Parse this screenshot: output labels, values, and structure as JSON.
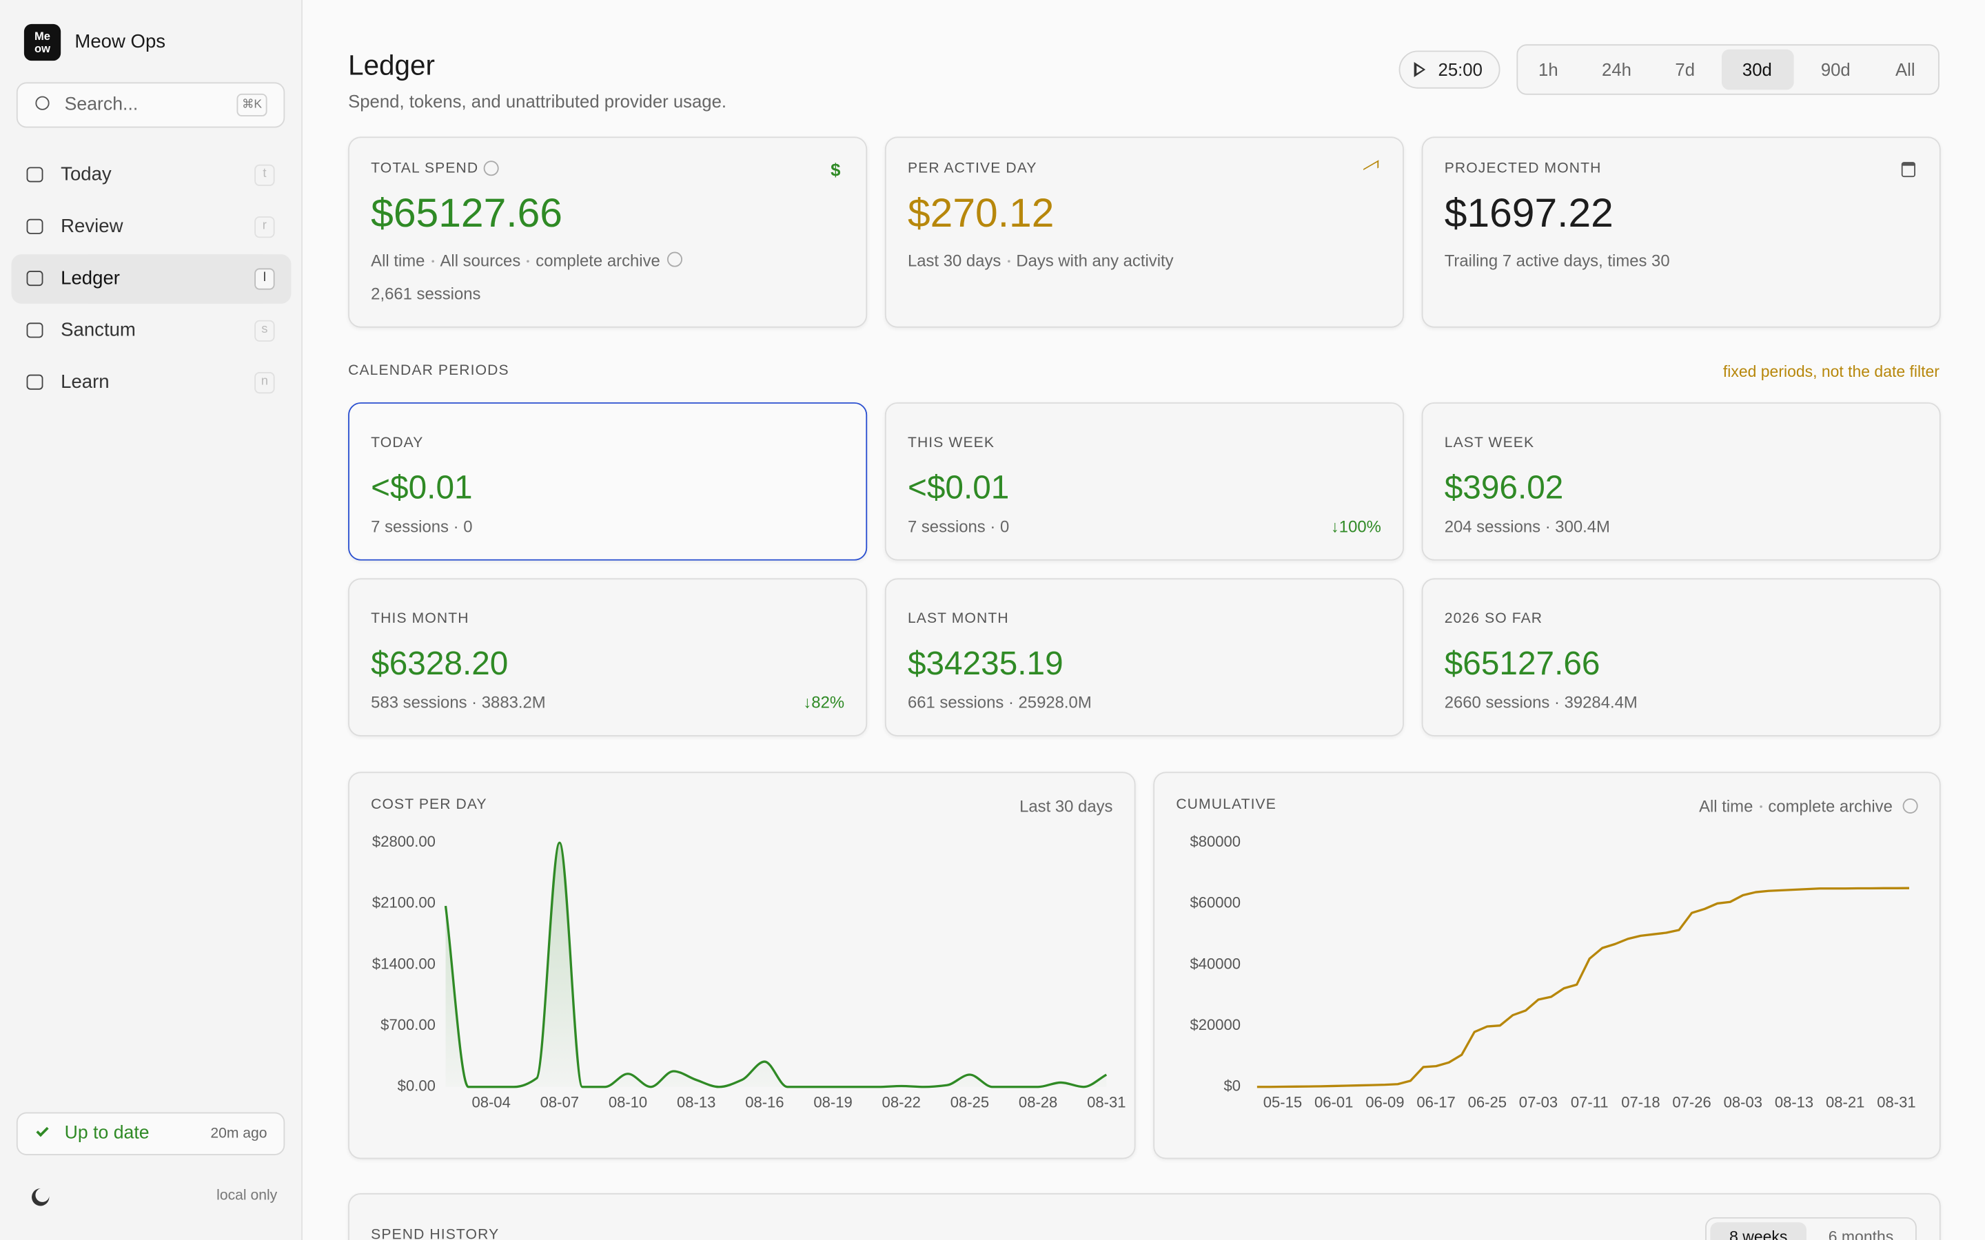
{
  "sidebar": {
    "logo": [
      "Me",
      "ow"
    ],
    "brand": "Meow Ops",
    "search": {
      "placeholder": "Search...",
      "shortcut": "⌘K"
    },
    "nav": [
      {
        "label": "Today",
        "key": "t"
      },
      {
        "label": "Review",
        "key": "r"
      },
      {
        "label": "Ledger",
        "key": "l"
      },
      {
        "label": "Sanctum",
        "key": "s"
      },
      {
        "label": "Learn",
        "key": "n"
      }
    ],
    "active_nav": 2,
    "status": {
      "label": "Up to date",
      "time": "20m ago"
    },
    "footer": "local only"
  },
  "header": {
    "title": "Ledger",
    "subtitle": "Spend, tokens, and unattributed provider usage.",
    "timer": "25:00",
    "ranges": [
      "1h",
      "24h",
      "7d",
      "30d",
      "90d",
      "All"
    ],
    "active_range": 3
  },
  "summary": [
    {
      "label": "TOTAL SPEND",
      "icon": "$",
      "value": "$65127.66",
      "color": "#2f8a25",
      "meta": [
        "All time",
        "All sources",
        "complete archive"
      ],
      "extra": "2,661 sessions"
    },
    {
      "label": "PER ACTIVE DAY",
      "value": "$270.12",
      "color": "#b7870b",
      "meta": [
        "Last 30 days",
        "Days with any activity"
      ]
    },
    {
      "label": "PROJECTED MONTH",
      "value": "$1697.22",
      "color": "#1d1d1d",
      "meta": [
        "Trailing 7 active days, times 30"
      ]
    }
  ],
  "calendar": {
    "title": "CALENDAR PERIODS",
    "note": "fixed periods, not the date filter",
    "periods": [
      {
        "label": "TODAY",
        "value": "<$0.01",
        "detail": "7 sessions · 0"
      },
      {
        "label": "THIS WEEK",
        "value": "<$0.01",
        "detail": "7 sessions · 0",
        "change": "↓100%"
      },
      {
        "label": "LAST WEEK",
        "value": "$396.02",
        "detail": "204 sessions · 300.4M"
      },
      {
        "label": "THIS MONTH",
        "value": "$6328.20",
        "detail": "583 sessions · 3883.2M",
        "change": "↓82%"
      },
      {
        "label": "LAST MONTH",
        "value": "$34235.19",
        "detail": "661 sessions · 25928.0M"
      },
      {
        "label": "2026 SO FAR",
        "value": "$65127.66",
        "detail": "2660 sessions · 39284.4M"
      }
    ],
    "selected": 0
  },
  "charts": [
    {
      "type": "line",
      "title": "COST PER DAY",
      "note": [
        "Last 30 days"
      ],
      "color": "#2f8a25",
      "fill": true,
      "smooth": true,
      "x": [
        null,
        null,
        "08-04",
        null,
        null,
        "08-07",
        null,
        null,
        "08-10",
        null,
        null,
        "08-13",
        null,
        null,
        "08-16",
        null,
        null,
        "08-19",
        null,
        null,
        "08-22",
        null,
        null,
        "08-25",
        null,
        null,
        "08-28",
        null,
        null,
        "08-31"
      ],
      "values": [
        2075,
        0,
        0,
        0,
        100,
        2800,
        0,
        0,
        150,
        0,
        180,
        80,
        0,
        80,
        290,
        0,
        0,
        0,
        0,
        0,
        10,
        0,
        20,
        140,
        0,
        0,
        0,
        50,
        0,
        140
      ],
      "ylim": [
        0,
        2800
      ],
      "yticks": [
        {
          "value": 0,
          "label": "$0.00"
        },
        {
          "value": 700,
          "label": "$700.00"
        },
        {
          "value": 1400,
          "label": "$1400.00"
        },
        {
          "value": 2100,
          "label": "$2100.00"
        },
        {
          "value": 2800,
          "label": "$2800.00"
        }
      ]
    },
    {
      "type": "line",
      "title": "CUMULATIVE",
      "note": [
        "All time",
        "complete archive"
      ],
      "color": "#b7870b",
      "fill": false,
      "smooth": false,
      "x": [
        null,
        null,
        "05-15",
        null,
        null,
        null,
        "06-01",
        null,
        null,
        null,
        "06-09",
        null,
        null,
        null,
        "06-17",
        null,
        null,
        null,
        "06-25",
        null,
        null,
        null,
        "07-03",
        null,
        null,
        null,
        "07-11",
        null,
        null,
        null,
        "07-18",
        null,
        null,
        null,
        "07-26",
        null,
        null,
        null,
        "08-03",
        null,
        null,
        null,
        "08-13",
        null,
        null,
        null,
        "08-21",
        null,
        null,
        null,
        "08-31",
        null
      ],
      "values": [
        0,
        0,
        50,
        100,
        150,
        200,
        300,
        400,
        500,
        600,
        700,
        900,
        2000,
        6500,
        6800,
        8000,
        10500,
        18000,
        19800,
        20100,
        23500,
        25000,
        28600,
        29500,
        32300,
        33500,
        42000,
        45500,
        46800,
        48500,
        49500,
        50000,
        50500,
        51400,
        57000,
        58300,
        60100,
        60600,
        62800,
        63800,
        64200,
        64400,
        64600,
        64800,
        65000,
        65000,
        65000,
        65050,
        65050,
        65100,
        65100,
        65127
      ],
      "ylim": [
        0,
        80000
      ],
      "yticks": [
        {
          "value": 0,
          "label": "$0"
        },
        {
          "value": 20000,
          "label": "$20000"
        },
        {
          "value": 40000,
          "label": "$40000"
        },
        {
          "value": 60000,
          "label": "$60000"
        },
        {
          "value": 80000,
          "label": "$80000"
        }
      ]
    }
  ],
  "spend_history": {
    "title": "SPEND HISTORY",
    "ranges": [
      "8 weeks",
      "6 months"
    ],
    "active_range": 0
  }
}
